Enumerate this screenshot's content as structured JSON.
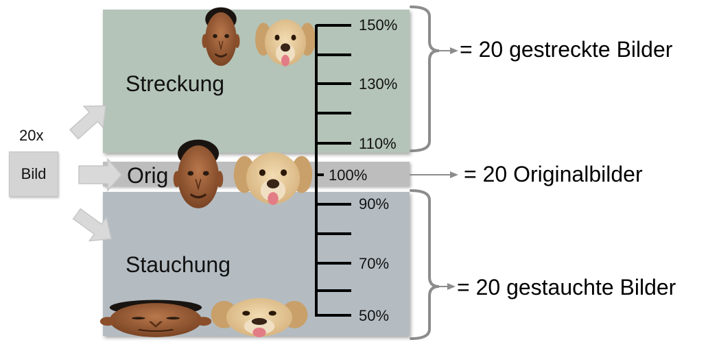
{
  "input": {
    "count": "20x",
    "label": "Bild"
  },
  "sections": {
    "stretch": {
      "label": "Streckung",
      "result": "= 20 gestreckte Bilder"
    },
    "original": {
      "label": "Orig",
      "result": "= 20 Originalbilder"
    },
    "compress": {
      "label": "Stauchung",
      "result": "= 20 gestauchte Bilder"
    }
  },
  "scale": {
    "labels": {
      "p150": "150%",
      "p130": "130%",
      "p110": "110%",
      "p100": "100%",
      "p90": "90%",
      "p70": "70%",
      "p50": "50%"
    }
  },
  "colors": {
    "stretch_panel": "#b4c4b8",
    "original_band": "#bdbdbd",
    "compress_panel": "#b4bcc2",
    "arrow_fill": "#d9d9d9",
    "bracket": "#8c8c8c"
  },
  "icons": [
    "face-man-icon",
    "face-dog-icon",
    "block-arrow-icon",
    "brace-icon"
  ]
}
